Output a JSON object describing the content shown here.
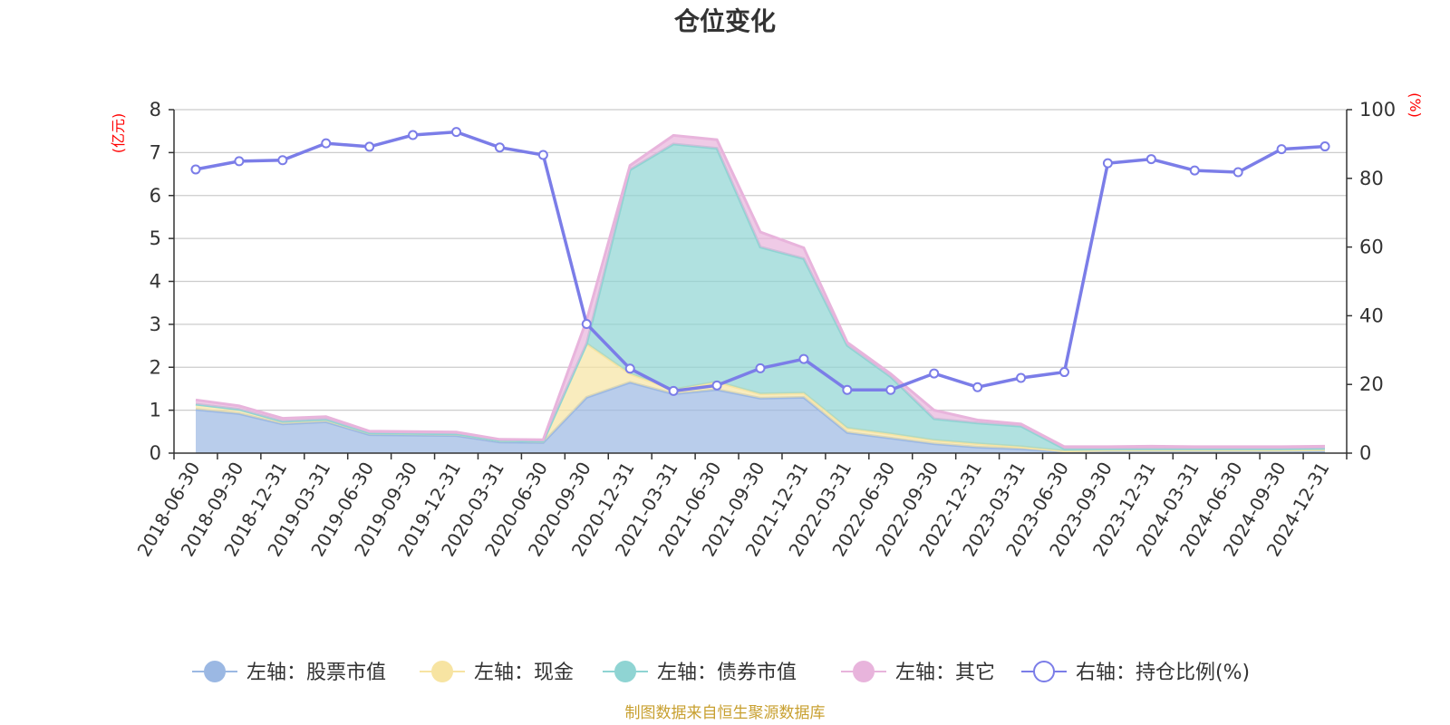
{
  "chart_data": {
    "type": "area",
    "title": "仓位变化",
    "left_axis_unit": "(亿元)",
    "right_axis_unit": "(%)",
    "source": "制图数据来自恒生聚源数据库",
    "categories": [
      "2018-06-30",
      "2018-09-30",
      "2018-12-31",
      "2019-03-31",
      "2019-06-30",
      "2019-09-30",
      "2019-12-31",
      "2020-03-31",
      "2020-06-30",
      "2020-09-30",
      "2020-12-31",
      "2021-03-31",
      "2021-06-30",
      "2021-09-30",
      "2021-12-31",
      "2022-03-31",
      "2022-06-30",
      "2022-09-30",
      "2022-12-31",
      "2023-03-31",
      "2023-06-30",
      "2023-09-30",
      "2023-12-31",
      "2024-03-31",
      "2024-06-30",
      "2024-09-30",
      "2024-12-31"
    ],
    "left_ylim": [
      0,
      8
    ],
    "left_ticks": [
      0,
      1,
      2,
      3,
      4,
      5,
      6,
      7,
      8
    ],
    "right_ylim": [
      0,
      100
    ],
    "right_ticks": [
      0,
      20,
      40,
      60,
      80,
      100
    ],
    "grid": true,
    "legend_position": "bottom",
    "stacked_series": [
      {
        "name": "左轴：股票市值",
        "color": "#9bb8e3",
        "values": [
          1.02,
          0.92,
          0.68,
          0.73,
          0.43,
          0.42,
          0.41,
          0.26,
          0.25,
          1.3,
          1.65,
          1.38,
          1.48,
          1.28,
          1.3,
          0.48,
          0.35,
          0.22,
          0.14,
          0.1,
          0.03,
          0.05,
          0.05,
          0.05,
          0.05,
          0.05,
          0.06
        ]
      },
      {
        "name": "左轴：现金",
        "color": "#f7e4a2",
        "values": [
          0.12,
          0.1,
          0.06,
          0.06,
          0.04,
          0.04,
          0.04,
          0.03,
          0.03,
          1.25,
          0.2,
          0.1,
          0.18,
          0.1,
          0.1,
          0.1,
          0.1,
          0.08,
          0.08,
          0.05,
          0.02,
          0.02,
          0.02,
          0.02,
          0.02,
          0.02,
          0.02
        ]
      },
      {
        "name": "左轴：债券市值",
        "color": "#8fd4d3",
        "values": [
          0,
          0,
          0,
          0,
          0,
          0,
          0,
          0,
          0,
          0,
          4.75,
          5.72,
          5.44,
          3.42,
          3.13,
          1.93,
          1.33,
          0.5,
          0.48,
          0.48,
          0.05,
          0.03,
          0.03,
          0.03,
          0.03,
          0.03,
          0.03
        ]
      },
      {
        "name": "左轴：其它",
        "color": "#e8b4dc",
        "values": [
          0.1,
          0.08,
          0.07,
          0.06,
          0.04,
          0.04,
          0.04,
          0.03,
          0.03,
          0.55,
          0.1,
          0.2,
          0.2,
          0.35,
          0.25,
          0.07,
          0.07,
          0.2,
          0.07,
          0.05,
          0.05,
          0.05,
          0.06,
          0.05,
          0.05,
          0.05,
          0.05
        ]
      }
    ],
    "line_series": {
      "name": "右轴：持仓比例(%)",
      "color": "#7b7de8",
      "values": [
        82.6,
        85,
        85.3,
        90.2,
        89.2,
        92.6,
        93.5,
        89,
        86.8,
        37.6,
        24.6,
        18.1,
        19.7,
        24.7,
        27.4,
        18.4,
        18.4,
        23.2,
        19.2,
        21.9,
        23.6,
        84.4,
        85.6,
        82.3,
        81.8,
        88.5,
        89.3
      ]
    }
  }
}
